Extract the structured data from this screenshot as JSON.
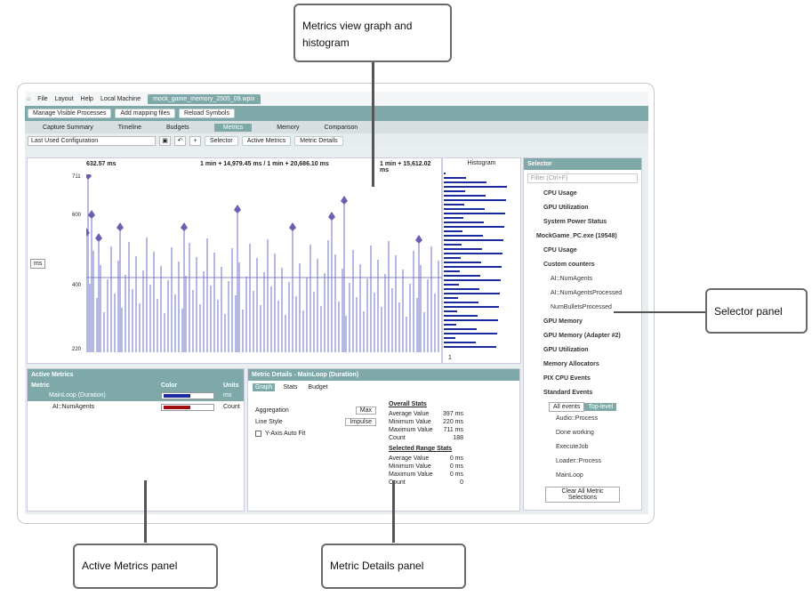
{
  "callouts": {
    "graph": "Metrics view graph and histogram",
    "selector": "Selector panel",
    "active": "Active Metrics panel",
    "details": "Metric Details panel"
  },
  "app": {
    "menu": [
      "File",
      "Layout",
      "Help"
    ],
    "local_machine": "Local Machine",
    "doc_tab": "mock_game_memory_2505_09.wpix",
    "toolbar1": [
      "Manage Visible Processes",
      "Add mapping files",
      "Reload Symbols"
    ],
    "tabs": [
      "Capture Summary",
      "Timeline",
      "Budgets",
      "Metrics",
      "Memory",
      "Comparison"
    ],
    "config": "Last Used Configuration",
    "toolbar2": [
      "Selector",
      "Active Metrics",
      "Metric Details"
    ],
    "graph": {
      "cursor_left": "632.57 ms",
      "range": "1 min + 14,979.45 ms / 1 min + 20,686.10 ms",
      "cursor_right": "1 min + 15,612.02 ms",
      "y_ticks": [
        "711",
        "600",
        "400",
        "220"
      ],
      "unit": "ms",
      "hist_title": "Histogram",
      "hist_axis": "1"
    },
    "selector": {
      "title": "Selector",
      "filter": "Filter (Ctrl+F)",
      "items": [
        "CPU Usage",
        "GPU Utilization",
        "System Power Status",
        "MockGame_PC.exe (19548)",
        "CPU Usage",
        "Custom counters",
        "AI::NumAgents",
        "AI::NumAgentsProcessed",
        "NumBulletsProcessed",
        "GPU Memory",
        "GPU Memory (Adapter #2)",
        "GPU Utilization",
        "Memory Allocators",
        "PIX CPU Events",
        "Standard Events"
      ],
      "events_tabs": [
        "All events",
        "Top-level"
      ],
      "events": [
        "Audio::Process",
        "Done working",
        "ExecuteJob",
        "Loader::Process",
        "MainLoop"
      ],
      "clear": "Clear All Metric Selections"
    },
    "active_metrics": {
      "title": "Active Metrics",
      "cols": [
        "Metric",
        "Color",
        "Units"
      ],
      "rows": [
        {
          "name": "MainLoop (Duration)",
          "unit": "ms",
          "color": "#1a2aa0"
        },
        {
          "name": "AI::NumAgents",
          "unit": "Count",
          "color": "#a01010"
        }
      ]
    },
    "metric_details": {
      "title": "Metric Details - MainLoop (Duration)",
      "tabs": [
        "Graph",
        "Stats",
        "Budget"
      ],
      "aggregation_label": "Aggregation",
      "aggregation": "Max",
      "line_style_label": "Line Style",
      "line_style": "Impulse",
      "autofit": "Y-Axis Auto Fit",
      "overall": "Overall Stats",
      "overall_rows": [
        [
          "Average Value",
          "397 ms"
        ],
        [
          "Minimum Value",
          "220 ms"
        ],
        [
          "Maximum Value",
          "711 ms"
        ],
        [
          "Count",
          "188"
        ]
      ],
      "selected": "Selected Range Stats",
      "selected_rows": [
        [
          "Average Value",
          "0 ms"
        ],
        [
          "Minimum Value",
          "0 ms"
        ],
        [
          "Maximum Value",
          "0 ms"
        ],
        [
          "Count",
          "0"
        ]
      ]
    }
  }
}
